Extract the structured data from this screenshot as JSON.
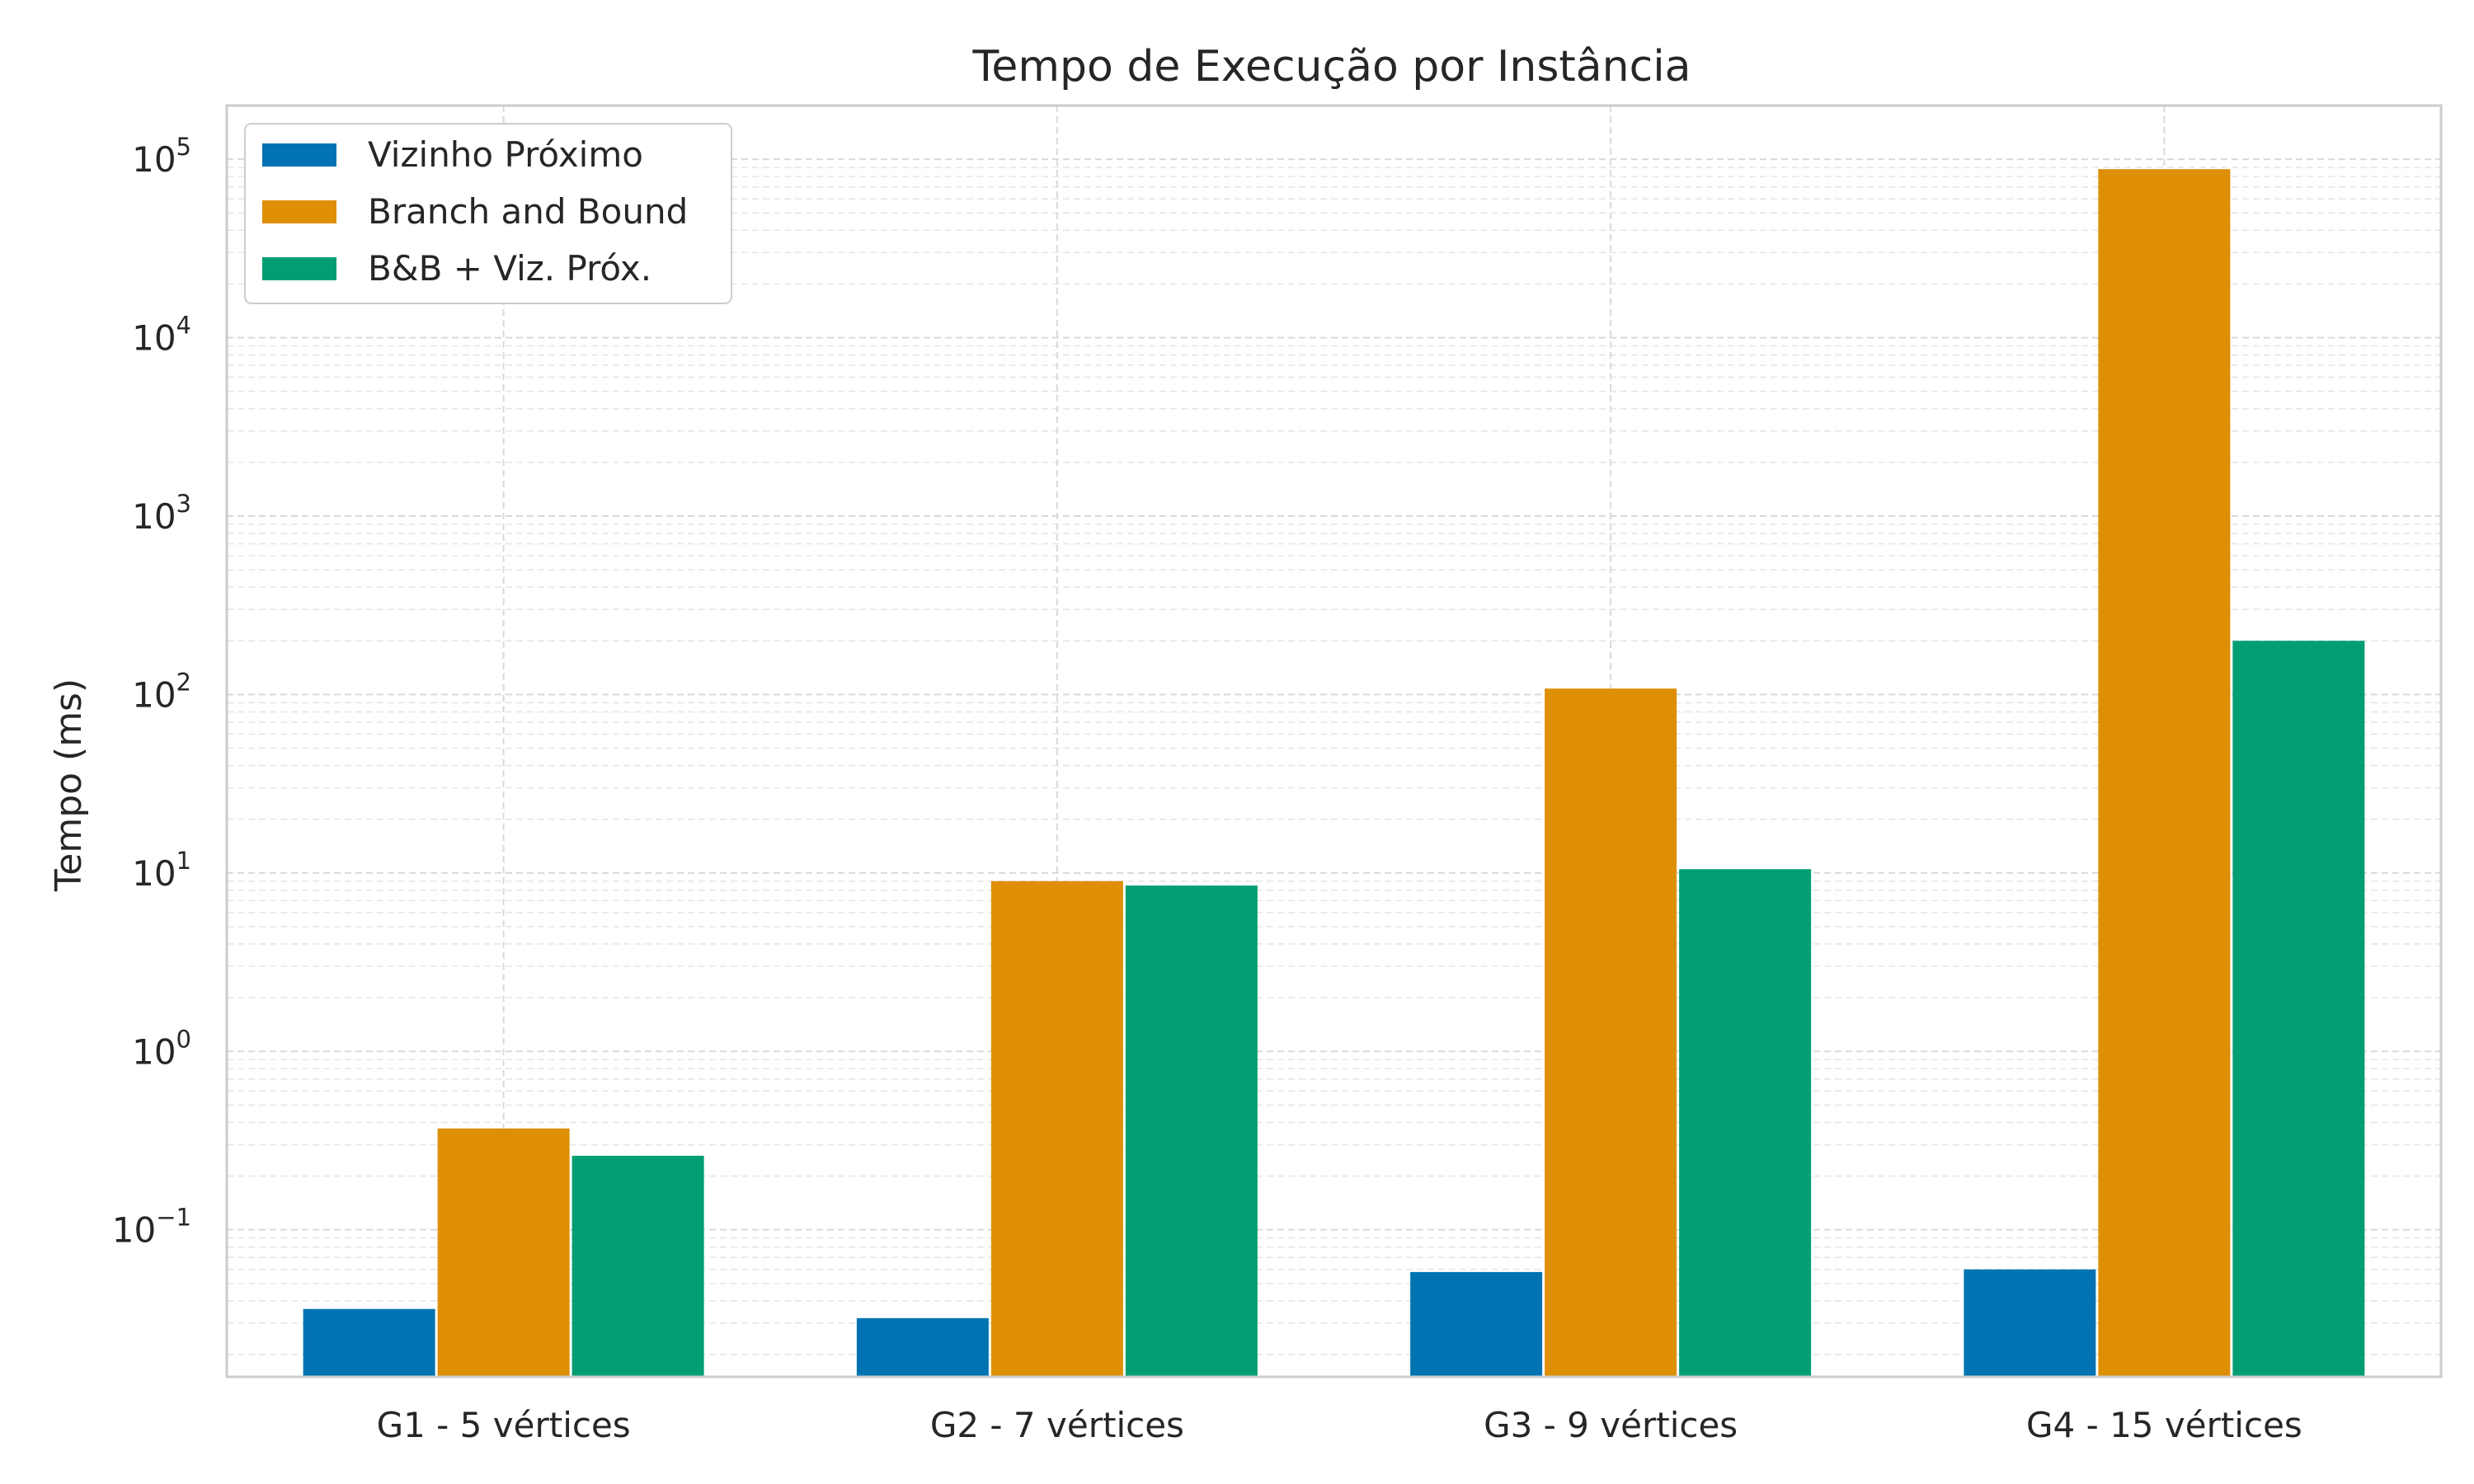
{
  "chart_data": {
    "type": "bar",
    "title": "Tempo de Execução por Instância",
    "xlabel": "",
    "ylabel": "Tempo (ms)",
    "yscale": "log",
    "ylim": [
      0.015,
      200000
    ],
    "yticks": [
      {
        "value": 0.1,
        "exp": "−1"
      },
      {
        "value": 1,
        "exp": "0"
      },
      {
        "value": 10,
        "exp": "1"
      },
      {
        "value": 100,
        "exp": "2"
      },
      {
        "value": 1000,
        "exp": "3"
      },
      {
        "value": 10000,
        "exp": "4"
      },
      {
        "value": 100000,
        "exp": "5"
      }
    ],
    "ytick_base": "10",
    "grid": true,
    "legend_position": "top-left",
    "categories": [
      "G1 - 5 vértices",
      "G2 - 7 vértices",
      "G3 - 9 vértices",
      "G4 - 15 vértices"
    ],
    "series": [
      {
        "name": "Vizinho Próximo",
        "color": "#0173b2",
        "values": [
          0.036,
          0.032,
          0.058,
          0.06
        ]
      },
      {
        "name": "Branch and Bound",
        "color": "#de8f05",
        "values": [
          0.37,
          9.0,
          108,
          88000
        ]
      },
      {
        "name": "B&B + Viz. Próx.",
        "color": "#029e73",
        "values": [
          0.26,
          8.5,
          10.5,
          200
        ]
      }
    ]
  }
}
